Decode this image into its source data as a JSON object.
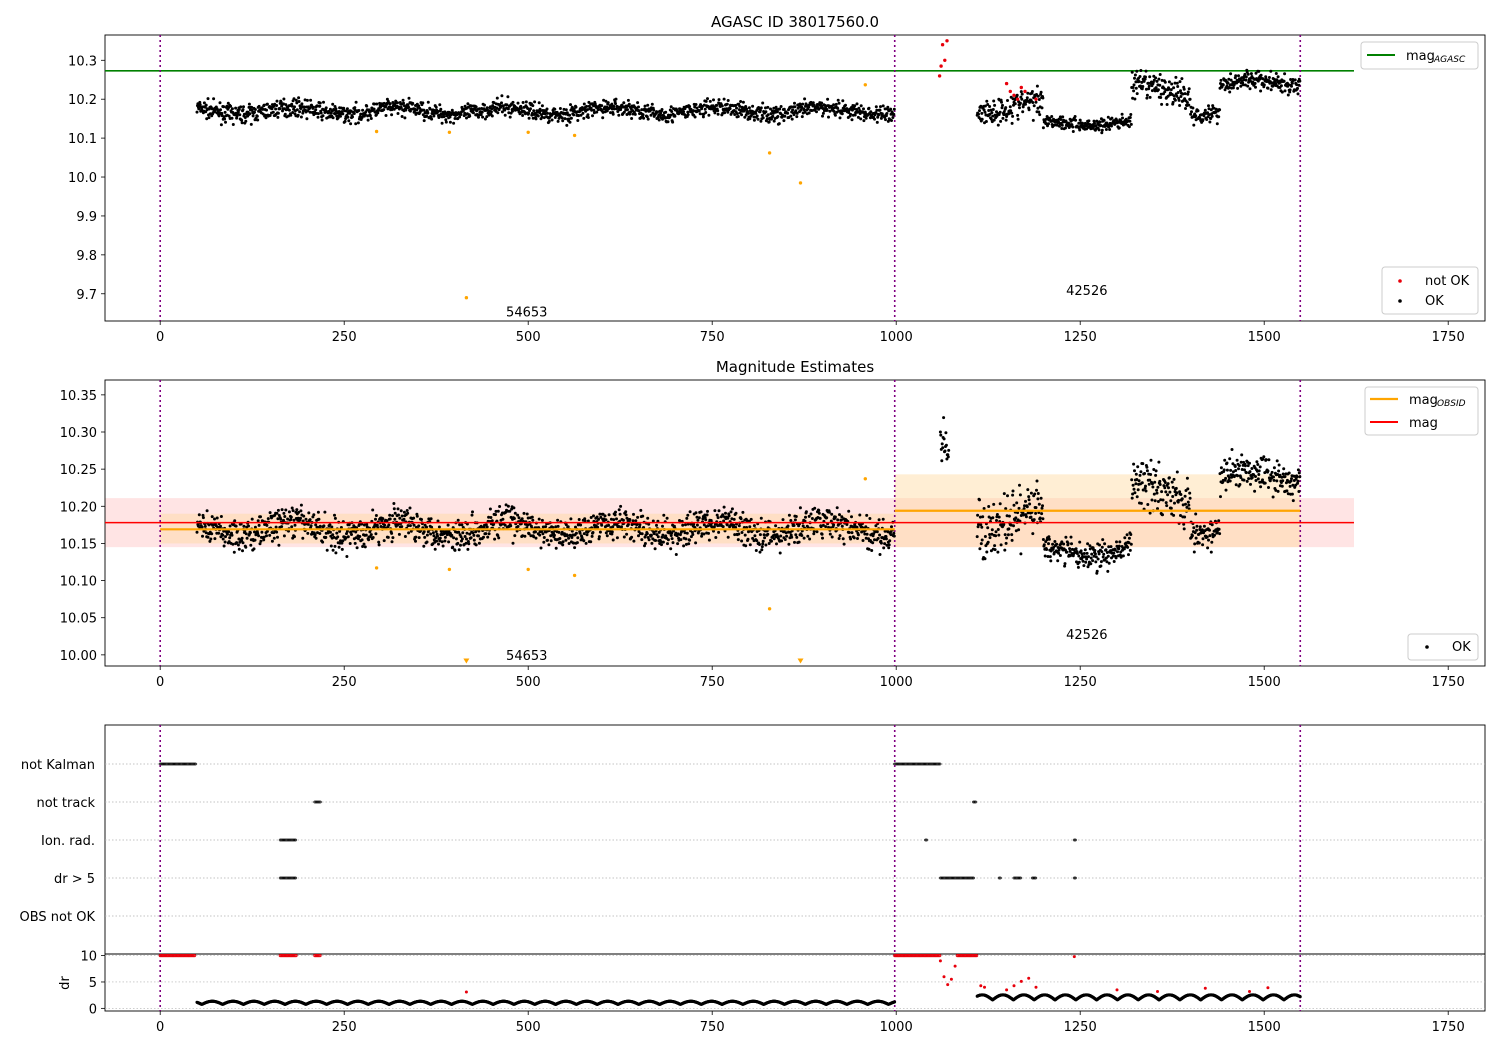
{
  "figure": {
    "title_top": "AGASC ID 38017560.0",
    "title_mid": "Magnitude Estimates",
    "obsid_labels": [
      "54653",
      "42526"
    ]
  },
  "colors": {
    "ok": "#000000",
    "not_ok": "#e8000b",
    "suspect": "#ffa500",
    "agasc_line": "#008000",
    "mag_line": "#ff0000",
    "mag_band": "#ffb3b3",
    "obsid_line": "#ffa500",
    "obsid_band": "#ffd9a0",
    "boundary": "#800080",
    "grid": "#b0b0b0"
  },
  "chart_data": [
    {
      "type": "scatter",
      "title": "AGASC ID 38017560.0",
      "xlim": [
        -75,
        1800
      ],
      "ylim": [
        9.63,
        10.365
      ],
      "xticks": [
        0,
        250,
        500,
        750,
        1000,
        1250,
        1500,
        1750
      ],
      "yticks": [
        9.7,
        9.8,
        9.9,
        10.0,
        10.1,
        10.2,
        10.3
      ],
      "obsid_boundaries": [
        0,
        998,
        1549
      ],
      "obsid_labels": [
        {
          "text": "54653",
          "x": 498,
          "y": 9.655
        },
        {
          "text": "42526",
          "x": 1259,
          "y": 9.71
        }
      ],
      "hlines": [
        {
          "name": "mag_AGASC",
          "y": 10.273,
          "x": [
            -75,
            1622
          ]
        }
      ],
      "series": [
        {
          "name": "OK",
          "segments": [
            {
              "x": [
                50,
                998
              ],
              "mean": 10.17,
              "spread": 0.018
            },
            {
              "x": [
                1110,
                1200
              ],
              "mean": 10.18,
              "spread": 0.03
            },
            {
              "x": [
                1200,
                1320
              ],
              "mean": 10.14,
              "spread": 0.015
            },
            {
              "x": [
                1320,
                1400
              ],
              "mean": 10.22,
              "spread": 0.03
            },
            {
              "x": [
                1400,
                1440
              ],
              "mean": 10.17,
              "spread": 0.02
            },
            {
              "x": [
                1440,
                1549
              ],
              "mean": 10.24,
              "spread": 0.02
            }
          ]
        },
        {
          "name": "not OK",
          "points": [
            [
              1059,
              10.26
            ],
            [
              1061,
              10.285
            ],
            [
              1063,
              10.34
            ],
            [
              1066,
              10.3
            ],
            [
              1069,
              10.35
            ],
            [
              1150,
              10.24
            ],
            [
              1155,
              10.22
            ],
            [
              1160,
              10.21
            ],
            [
              1165,
              10.2
            ],
            [
              1170,
              10.23
            ],
            [
              1175,
              10.22
            ],
            [
              1190,
              10.2
            ]
          ]
        },
        {
          "name": "suspect",
          "points": [
            [
              294,
              10.117
            ],
            [
              393,
              10.115
            ],
            [
              416,
              9.69
            ],
            [
              500,
              10.115
            ],
            [
              563,
              10.107
            ],
            [
              828,
              10.062
            ],
            [
              870,
              9.985
            ],
            [
              958,
              10.237
            ]
          ]
        }
      ],
      "legend": [
        {
          "label": "mag",
          "sub": "AGASC",
          "placement": "top-right"
        },
        {
          "label": "not OK"
        },
        {
          "label": "OK"
        }
      ]
    },
    {
      "type": "scatter",
      "title": "Magnitude Estimates",
      "xlim": [
        -75,
        1800
      ],
      "ylim": [
        9.985,
        10.37
      ],
      "xticks": [
        0,
        250,
        500,
        750,
        1000,
        1250,
        1500,
        1750
      ],
      "yticks": [
        10.0,
        10.05,
        10.1,
        10.15,
        10.2,
        10.25,
        10.3,
        10.35
      ],
      "obsid_boundaries": [
        0,
        998,
        1549
      ],
      "obsid_labels": [
        {
          "text": "54653",
          "x": 498,
          "y": 10.0
        },
        {
          "text": "42526",
          "x": 1259,
          "y": 10.028
        }
      ],
      "hlines": [
        {
          "name": "mag",
          "y": 10.178,
          "x": [
            -75,
            1622
          ],
          "band": [
            10.145,
            10.211
          ]
        },
        {
          "name": "mag_OBSID",
          "y": 10.169,
          "x": [
            0,
            998
          ],
          "band": [
            10.15,
            10.19
          ]
        },
        {
          "name": "mag_OBSID",
          "y": 10.194,
          "x": [
            998,
            1549
          ],
          "band": [
            10.145,
            10.243
          ]
        }
      ],
      "series": [
        {
          "name": "OK",
          "segments": [
            {
              "x": [
                50,
                998
              ],
              "mean": 10.17,
              "spread": 0.018
            },
            {
              "x": [
                1060,
                1072
              ],
              "mean": 10.27,
              "spread": 0.025
            },
            {
              "x": [
                1110,
                1200
              ],
              "mean": 10.18,
              "spread": 0.03
            },
            {
              "x": [
                1200,
                1320
              ],
              "mean": 10.14,
              "spread": 0.015
            },
            {
              "x": [
                1320,
                1400
              ],
              "mean": 10.22,
              "spread": 0.03
            },
            {
              "x": [
                1400,
                1440
              ],
              "mean": 10.17,
              "spread": 0.02
            },
            {
              "x": [
                1440,
                1549
              ],
              "mean": 10.24,
              "spread": 0.02
            }
          ]
        },
        {
          "name": "suspect",
          "points": [
            [
              294,
              10.117
            ],
            [
              393,
              10.115
            ],
            [
              500,
              10.115
            ],
            [
              563,
              10.107
            ],
            [
              828,
              10.062
            ],
            [
              958,
              10.237
            ]
          ]
        },
        {
          "name": "off-scale",
          "points": [
            [
              416,
              9.991
            ],
            [
              870,
              9.991
            ]
          ]
        }
      ],
      "legend": [
        {
          "label": "mag",
          "sub": "OBSID",
          "placement": "top-right"
        },
        {
          "label": "mag"
        },
        {
          "label": "OK"
        }
      ]
    },
    {
      "type": "scatter",
      "title": "",
      "xlim": [
        -75,
        1800
      ],
      "xticks": [
        0,
        250,
        500,
        750,
        1000,
        1250,
        1500,
        1750
      ],
      "flag_rows": [
        "not Kalman",
        "not track",
        "Ion. rad.",
        "dr > 5",
        "OBS not OK"
      ],
      "flag_ranges": {
        "not Kalman": [
          [
            0,
            48
          ],
          [
            998,
            1060
          ]
        ],
        "not track": [
          [
            210,
            218
          ],
          [
            1105,
            1108
          ]
        ],
        "Ion. rad.": [
          [
            163,
            185
          ],
          [
            1040,
            1042
          ],
          [
            1242,
            1244
          ]
        ],
        "dr > 5": [
          [
            163,
            185
          ],
          [
            1060,
            1105
          ],
          [
            1140,
            1142
          ],
          [
            1160,
            1170
          ],
          [
            1185,
            1190
          ],
          [
            1242,
            1244
          ]
        ],
        "OBS not OK": []
      },
      "obsid_boundaries": [
        0,
        998,
        1549
      ],
      "dr_ylim": [
        -0.5,
        10.3
      ],
      "dr_yticks": [
        0,
        5,
        10
      ],
      "dr_ylabel": "dr",
      "dr_segments": [
        {
          "x": [
            50,
            998
          ],
          "level": 1.0,
          "spread": 0.5,
          "color": "ok"
        },
        {
          "x": [
            1110,
            1549
          ],
          "level": 2.0,
          "spread": 0.8,
          "color": "ok"
        },
        {
          "x": [
            0,
            48
          ],
          "level": 10,
          "spread": 0,
          "color": "not_ok"
        },
        {
          "x": [
            163,
            185
          ],
          "level": 10,
          "spread": 0,
          "color": "not_ok"
        },
        {
          "x": [
            210,
            218
          ],
          "level": 10,
          "spread": 0,
          "color": "not_ok"
        },
        {
          "x": [
            998,
            1060
          ],
          "level": 10,
          "spread": 0,
          "color": "not_ok"
        },
        {
          "x": [
            1083,
            1110
          ],
          "level": 10,
          "spread": 0,
          "color": "not_ok"
        }
      ],
      "dr_points_red": [
        [
          416,
          3.1
        ],
        [
          1060,
          9
        ],
        [
          1065,
          6
        ],
        [
          1070,
          4.5
        ],
        [
          1075,
          5.5
        ],
        [
          1080,
          8
        ],
        [
          1115,
          4.3
        ],
        [
          1120,
          4.0
        ],
        [
          1150,
          3.5
        ],
        [
          1160,
          4.3
        ],
        [
          1170,
          5.1
        ],
        [
          1180,
          5.7
        ],
        [
          1190,
          4.0
        ],
        [
          1242,
          9.8
        ],
        [
          1300,
          3.5
        ],
        [
          1355,
          3.2
        ],
        [
          1420,
          3.8
        ],
        [
          1480,
          3.2
        ],
        [
          1505,
          3.9
        ]
      ]
    }
  ]
}
